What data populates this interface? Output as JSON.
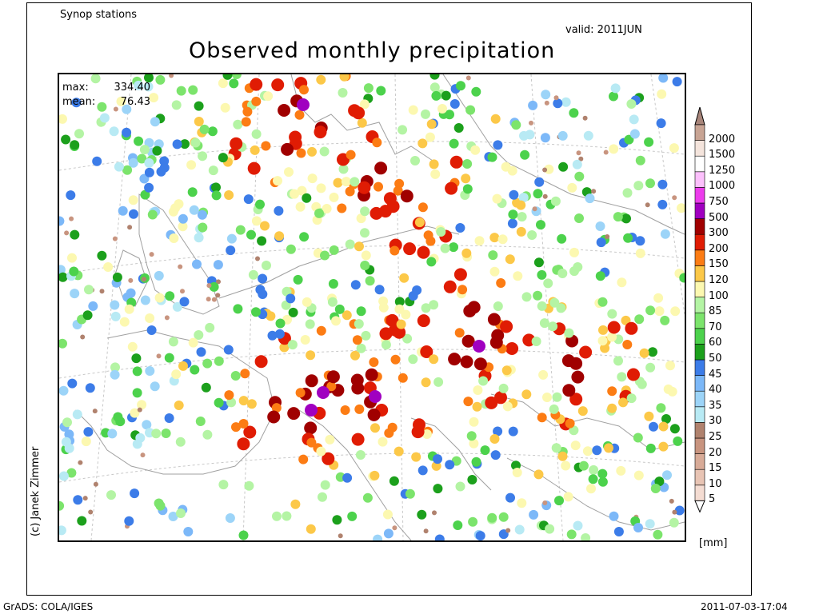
{
  "header": {
    "stations": "Synop stations",
    "valid": "valid: 2011JUN",
    "title": "Observed monthly precipitation"
  },
  "stats": {
    "max_label": "max:",
    "max_value": "334.40",
    "mean_label": "mean:",
    "mean_value": "76.43"
  },
  "legend": {
    "unit": "[mm]",
    "levels": [
      "5",
      "10",
      "15",
      "20",
      "25",
      "30",
      "35",
      "40",
      "45",
      "50",
      "60",
      "70",
      "85",
      "100",
      "120",
      "150",
      "200",
      "300",
      "500",
      "750",
      "1000",
      "1250",
      "1500",
      "2000"
    ],
    "colors": [
      "#f4dcd2",
      "#e8c4b4",
      "#d8ab98",
      "#c8947f",
      "#b0826e",
      "#b8eaf4",
      "#9cd4f8",
      "#7cb8f8",
      "#3c7ce8",
      "#1ca01c",
      "#4cd24c",
      "#7ce46c",
      "#b4f4a4",
      "#fcf8b0",
      "#fcc848",
      "#fc7c14",
      "#e01c04",
      "#a00000",
      "#a000c0",
      "#ec3cec",
      "#fcc0fc",
      "#ffffff",
      "#f4e4dc",
      "#c8a494"
    ],
    "top_arrow_color": "#a8857a"
  },
  "footer": {
    "credit": "(c) Janek Zimmer",
    "grads": "GrADS: COLA/IGES",
    "timestamp": "2011-07-03-17:04"
  }
}
